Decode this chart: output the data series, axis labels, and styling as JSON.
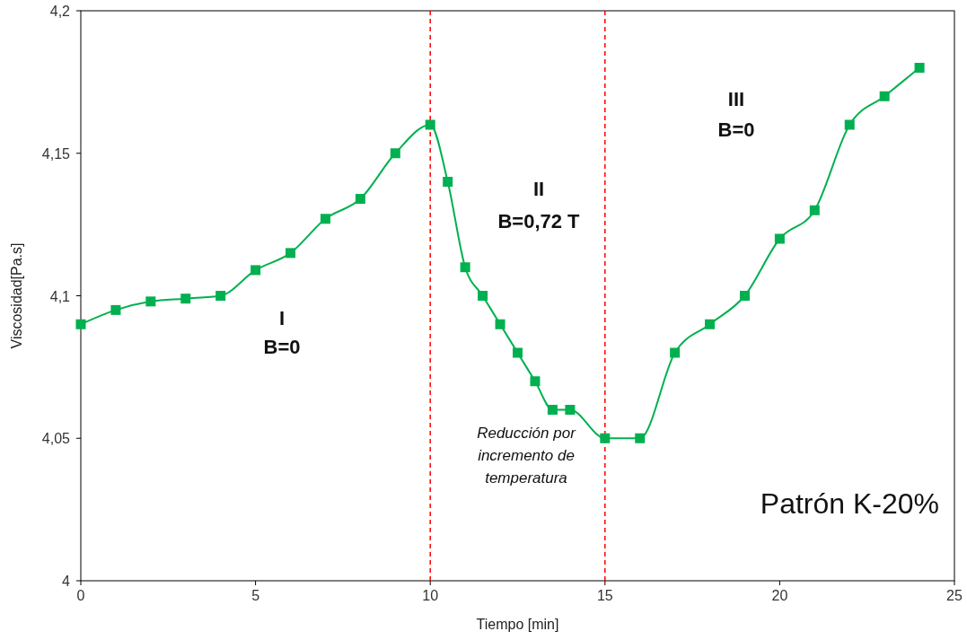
{
  "chart_data": {
    "type": "line",
    "xlabel": "Tiempo [min]",
    "ylabel": "Viscosidad[Pa.s]",
    "x": [
      0,
      1,
      2,
      3,
      4,
      5,
      6,
      7,
      8,
      9,
      10,
      10.5,
      11,
      11.5,
      12,
      12.5,
      13,
      13.5,
      14,
      15,
      16,
      17,
      18,
      19,
      20,
      21,
      22,
      23,
      24
    ],
    "series": [
      {
        "color": "#00b050",
        "values": [
          4.09,
          4.095,
          4.098,
          4.099,
          4.1,
          4.109,
          4.115,
          4.127,
          4.134,
          4.15,
          4.16,
          4.14,
          4.11,
          4.1,
          4.09,
          4.08,
          4.07,
          4.06,
          4.06,
          4.05,
          4.05,
          4.08,
          4.09,
          4.1,
          4.12,
          4.13,
          4.16,
          4.17,
          4.18
        ]
      }
    ],
    "xlim": [
      0,
      25
    ],
    "xticks": [
      0,
      5,
      10,
      15,
      20,
      25
    ],
    "ylim": [
      4,
      4.2
    ],
    "yticks": [
      {
        "value": 4,
        "label": "4"
      },
      {
        "value": 4.05,
        "label": "4,05"
      },
      {
        "value": 4.1,
        "label": "4,1"
      },
      {
        "value": 4.15,
        "label": "4,15"
      },
      {
        "value": 4.2,
        "label": "4,2"
      }
    ],
    "marker": "square",
    "line_style": "solid",
    "grid": false,
    "ref_lines": [
      {
        "axis": "x",
        "value": 10,
        "color": "#ff0000",
        "line_style": "dashed"
      },
      {
        "axis": "x",
        "value": 15,
        "color": "#ff0000",
        "line_style": "dashed"
      }
    ],
    "annotations": [
      "I\nB=0",
      "II\nB=0,72 T",
      "III\nB=0",
      "Reducción por\nincremento de\ntemperatura",
      "Patrón K-20%"
    ]
  }
}
